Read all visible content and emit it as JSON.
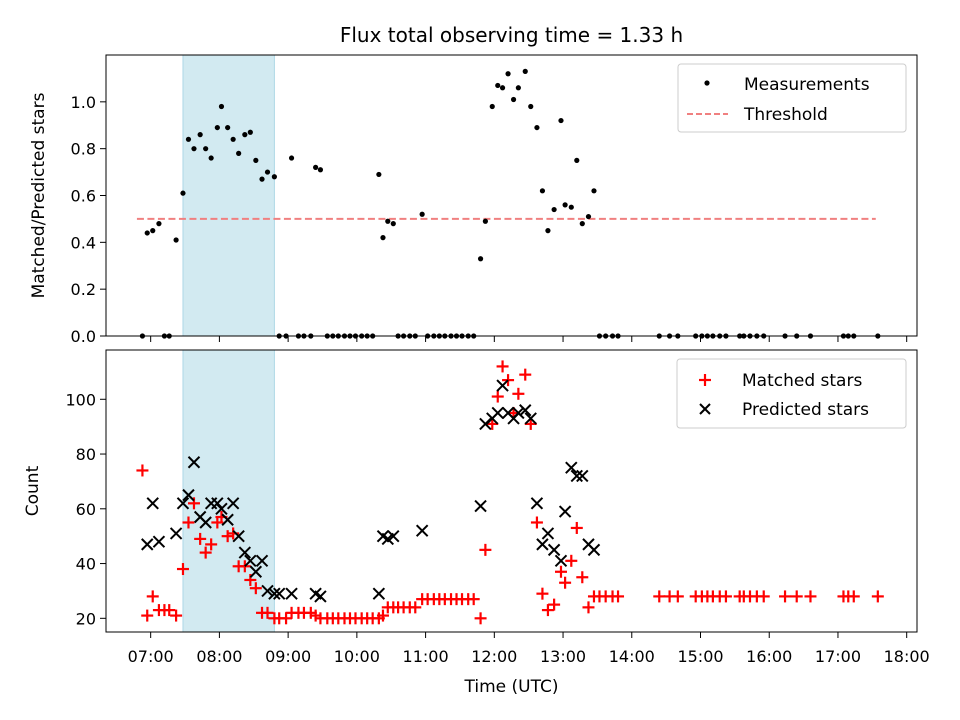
{
  "figure": {
    "title": "Flux total observing time = 1.33 h",
    "xlabel": "Time (UTC)",
    "x_ticks": [
      "07:00",
      "08:00",
      "09:00",
      "10:00",
      "11:00",
      "12:00",
      "13:00",
      "14:00",
      "15:00",
      "16:00",
      "17:00",
      "18:00"
    ],
    "highlight_window_h": [
      7.47,
      8.8
    ],
    "highlight_color": "#add8e6"
  },
  "chart_data": [
    {
      "type": "scatter",
      "ylabel": "Matched/Predicted stars",
      "xlim_h": [
        6.35,
        18.15
      ],
      "ylim": [
        0,
        1.2
      ],
      "y_ticks": [
        "0.0",
        "0.2",
        "0.4",
        "0.6",
        "0.8",
        "1.0"
      ],
      "legend": {
        "placement": "top-right",
        "entries": [
          "Measurements",
          "Threshold"
        ]
      },
      "threshold": {
        "name": "Threshold",
        "value": 0.5,
        "x_range_h": [
          6.8,
          17.55
        ],
        "color": "#f08080",
        "style": "dashed"
      },
      "series": [
        {
          "name": "Measurements",
          "color": "#000000",
          "points": [
            [
              6.88,
              0.0
            ],
            [
              6.95,
              0.44
            ],
            [
              7.03,
              0.45
            ],
            [
              7.12,
              0.48
            ],
            [
              7.2,
              0.0
            ],
            [
              7.27,
              0.0
            ],
            [
              7.37,
              0.41
            ],
            [
              7.47,
              0.61
            ],
            [
              7.55,
              0.84
            ],
            [
              7.63,
              0.8
            ],
            [
              7.72,
              0.86
            ],
            [
              7.8,
              0.8
            ],
            [
              7.88,
              0.76
            ],
            [
              7.97,
              0.89
            ],
            [
              8.03,
              0.98
            ],
            [
              8.12,
              0.89
            ],
            [
              8.2,
              0.84
            ],
            [
              8.28,
              0.78
            ],
            [
              8.37,
              0.86
            ],
            [
              8.45,
              0.87
            ],
            [
              8.53,
              0.75
            ],
            [
              8.62,
              0.67
            ],
            [
              8.7,
              0.7
            ],
            [
              8.8,
              0.68
            ],
            [
              8.87,
              0.0
            ],
            [
              8.97,
              0.0
            ],
            [
              9.05,
              0.76
            ],
            [
              9.15,
              0.0
            ],
            [
              9.23,
              0.0
            ],
            [
              9.33,
              0.0
            ],
            [
              9.4,
              0.72
            ],
            [
              9.47,
              0.71
            ],
            [
              9.57,
              0.0
            ],
            [
              9.65,
              0.0
            ],
            [
              9.73,
              0.0
            ],
            [
              9.82,
              0.0
            ],
            [
              9.9,
              0.0
            ],
            [
              9.98,
              0.0
            ],
            [
              10.07,
              0.0
            ],
            [
              10.15,
              0.0
            ],
            [
              10.23,
              0.0
            ],
            [
              10.32,
              0.69
            ],
            [
              10.38,
              0.42
            ],
            [
              10.45,
              0.49
            ],
            [
              10.53,
              0.48
            ],
            [
              10.6,
              0.0
            ],
            [
              10.68,
              0.0
            ],
            [
              10.77,
              0.0
            ],
            [
              10.85,
              0.0
            ],
            [
              10.95,
              0.52
            ],
            [
              11.03,
              0.0
            ],
            [
              11.12,
              0.0
            ],
            [
              11.2,
              0.0
            ],
            [
              11.28,
              0.0
            ],
            [
              11.37,
              0.0
            ],
            [
              11.45,
              0.0
            ],
            [
              11.53,
              0.0
            ],
            [
              11.62,
              0.0
            ],
            [
              11.7,
              0.0
            ],
            [
              11.8,
              0.33
            ],
            [
              11.87,
              0.49
            ],
            [
              11.97,
              0.98
            ],
            [
              12.05,
              1.07
            ],
            [
              12.12,
              1.06
            ],
            [
              12.2,
              1.12
            ],
            [
              12.28,
              1.01
            ],
            [
              12.35,
              1.06
            ],
            [
              12.45,
              1.13
            ],
            [
              12.53,
              0.98
            ],
            [
              12.62,
              0.89
            ],
            [
              12.7,
              0.62
            ],
            [
              12.78,
              0.45
            ],
            [
              12.87,
              0.54
            ],
            [
              12.97,
              0.92
            ],
            [
              13.03,
              0.56
            ],
            [
              13.12,
              0.55
            ],
            [
              13.2,
              0.75
            ],
            [
              13.28,
              0.48
            ],
            [
              13.37,
              0.51
            ],
            [
              13.45,
              0.62
            ],
            [
              13.53,
              0.0
            ],
            [
              13.62,
              0.0
            ],
            [
              13.72,
              0.0
            ],
            [
              13.8,
              0.0
            ],
            [
              14.4,
              0.0
            ],
            [
              14.55,
              0.0
            ],
            [
              14.67,
              0.0
            ],
            [
              14.93,
              0.0
            ],
            [
              15.02,
              0.0
            ],
            [
              15.1,
              0.0
            ],
            [
              15.18,
              0.0
            ],
            [
              15.28,
              0.0
            ],
            [
              15.37,
              0.0
            ],
            [
              15.57,
              0.0
            ],
            [
              15.63,
              0.0
            ],
            [
              15.72,
              0.0
            ],
            [
              15.82,
              0.0
            ],
            [
              15.92,
              0.0
            ],
            [
              16.23,
              0.0
            ],
            [
              16.4,
              0.0
            ],
            [
              16.6,
              0.0
            ],
            [
              17.08,
              0.0
            ],
            [
              17.15,
              0.0
            ],
            [
              17.23,
              0.0
            ],
            [
              17.58,
              0.0
            ]
          ]
        }
      ]
    },
    {
      "type": "scatter",
      "ylabel": "Count",
      "xlim_h": [
        6.35,
        18.15
      ],
      "ylim": [
        15,
        118
      ],
      "y_ticks": [
        "20",
        "40",
        "60",
        "80",
        "100"
      ],
      "legend": {
        "placement": "top-right",
        "entries": [
          "Matched stars",
          "Predicted stars"
        ]
      },
      "series": [
        {
          "name": "Matched stars",
          "color": "#ff0000",
          "marker": "+",
          "points": [
            [
              6.88,
              74
            ],
            [
              6.95,
              21
            ],
            [
              7.03,
              28
            ],
            [
              7.12,
              23
            ],
            [
              7.2,
              23
            ],
            [
              7.27,
              23
            ],
            [
              7.37,
              21
            ],
            [
              7.47,
              38
            ],
            [
              7.55,
              55
            ],
            [
              7.63,
              62
            ],
            [
              7.72,
              49
            ],
            [
              7.8,
              44
            ],
            [
              7.88,
              47
            ],
            [
              7.97,
              55
            ],
            [
              8.03,
              57
            ],
            [
              8.12,
              50
            ],
            [
              8.2,
              51
            ],
            [
              8.28,
              39
            ],
            [
              8.37,
              39
            ],
            [
              8.45,
              34
            ],
            [
              8.53,
              31
            ],
            [
              8.62,
              22
            ],
            [
              8.7,
              22
            ],
            [
              8.8,
              20
            ],
            [
              8.87,
              20
            ],
            [
              8.97,
              20
            ],
            [
              9.05,
              22
            ],
            [
              9.15,
              22
            ],
            [
              9.23,
              22
            ],
            [
              9.33,
              22
            ],
            [
              9.4,
              21
            ],
            [
              9.47,
              20
            ],
            [
              9.57,
              20
            ],
            [
              9.65,
              20
            ],
            [
              9.73,
              20
            ],
            [
              9.82,
              20
            ],
            [
              9.9,
              20
            ],
            [
              9.98,
              20
            ],
            [
              10.07,
              20
            ],
            [
              10.15,
              20
            ],
            [
              10.23,
              20
            ],
            [
              10.32,
              20
            ],
            [
              10.38,
              21
            ],
            [
              10.45,
              24
            ],
            [
              10.53,
              24
            ],
            [
              10.6,
              24
            ],
            [
              10.68,
              24
            ],
            [
              10.77,
              24
            ],
            [
              10.85,
              24
            ],
            [
              10.95,
              27
            ],
            [
              11.03,
              27
            ],
            [
              11.12,
              27
            ],
            [
              11.2,
              27
            ],
            [
              11.28,
              27
            ],
            [
              11.37,
              27
            ],
            [
              11.45,
              27
            ],
            [
              11.53,
              27
            ],
            [
              11.62,
              27
            ],
            [
              11.7,
              27
            ],
            [
              11.8,
              20
            ],
            [
              11.87,
              45
            ],
            [
              11.97,
              91
            ],
            [
              12.05,
              101
            ],
            [
              12.12,
              112
            ],
            [
              12.2,
              107
            ],
            [
              12.28,
              95
            ],
            [
              12.35,
              102
            ],
            [
              12.45,
              109
            ],
            [
              12.53,
              91
            ],
            [
              12.62,
              55
            ],
            [
              12.7,
              29
            ],
            [
              12.78,
              23
            ],
            [
              12.87,
              25
            ],
            [
              12.97,
              37
            ],
            [
              13.03,
              33
            ],
            [
              13.12,
              41
            ],
            [
              13.2,
              53
            ],
            [
              13.28,
              35
            ],
            [
              13.37,
              24
            ],
            [
              13.45,
              28
            ],
            [
              13.53,
              28
            ],
            [
              13.62,
              28
            ],
            [
              13.72,
              28
            ],
            [
              13.8,
              28
            ],
            [
              14.4,
              28
            ],
            [
              14.55,
              28
            ],
            [
              14.67,
              28
            ],
            [
              14.93,
              28
            ],
            [
              15.02,
              28
            ],
            [
              15.1,
              28
            ],
            [
              15.18,
              28
            ],
            [
              15.28,
              28
            ],
            [
              15.37,
              28
            ],
            [
              15.57,
              28
            ],
            [
              15.63,
              28
            ],
            [
              15.72,
              28
            ],
            [
              15.82,
              28
            ],
            [
              15.92,
              28
            ],
            [
              16.23,
              28
            ],
            [
              16.4,
              28
            ],
            [
              16.6,
              28
            ],
            [
              17.08,
              28
            ],
            [
              17.15,
              28
            ],
            [
              17.23,
              28
            ],
            [
              17.58,
              28
            ]
          ]
        },
        {
          "name": "Predicted stars",
          "color": "#000000",
          "marker": "x",
          "points": [
            [
              6.95,
              47
            ],
            [
              7.03,
              62
            ],
            [
              7.12,
              48
            ],
            [
              7.37,
              51
            ],
            [
              7.47,
              62
            ],
            [
              7.55,
              65
            ],
            [
              7.63,
              77
            ],
            [
              7.72,
              57
            ],
            [
              7.8,
              55
            ],
            [
              7.88,
              62
            ],
            [
              7.97,
              62
            ],
            [
              8.03,
              60
            ],
            [
              8.12,
              56
            ],
            [
              8.2,
              62
            ],
            [
              8.28,
              50
            ],
            [
              8.37,
              44
            ],
            [
              8.45,
              41
            ],
            [
              8.53,
              37
            ],
            [
              8.62,
              41
            ],
            [
              8.7,
              30
            ],
            [
              8.8,
              29
            ],
            [
              8.87,
              29
            ],
            [
              9.05,
              29
            ],
            [
              9.4,
              29
            ],
            [
              9.47,
              28
            ],
            [
              10.32,
              29
            ],
            [
              10.38,
              50
            ],
            [
              10.45,
              49
            ],
            [
              10.53,
              50
            ],
            [
              10.95,
              52
            ],
            [
              11.8,
              61
            ],
            [
              11.87,
              91
            ],
            [
              11.97,
              93
            ],
            [
              12.05,
              95
            ],
            [
              12.12,
              105
            ],
            [
              12.2,
              95
            ],
            [
              12.28,
              93
            ],
            [
              12.35,
              95
            ],
            [
              12.45,
              96
            ],
            [
              12.53,
              93
            ],
            [
              12.62,
              62
            ],
            [
              12.7,
              47
            ],
            [
              12.78,
              51
            ],
            [
              12.87,
              45
            ],
            [
              12.97,
              41
            ],
            [
              13.03,
              59
            ],
            [
              13.12,
              75
            ],
            [
              13.2,
              72
            ],
            [
              13.28,
              72
            ],
            [
              13.37,
              47
            ],
            [
              13.45,
              45
            ]
          ]
        }
      ]
    }
  ]
}
